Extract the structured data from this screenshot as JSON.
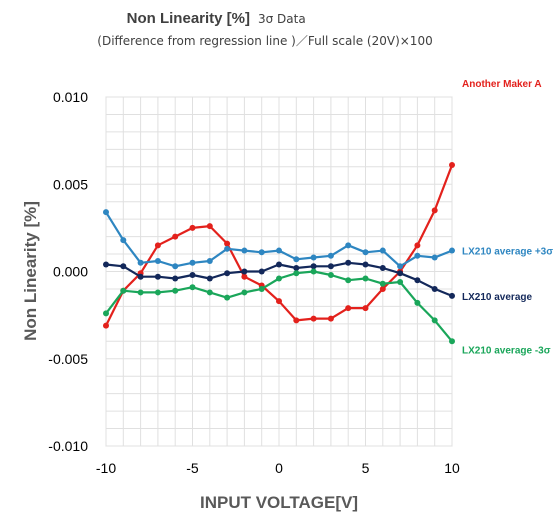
{
  "chart_data": {
    "type": "line",
    "title": "Non Linearity [%]",
    "title_suffix": "3σ Data",
    "subtitle": "(Difference from regression line )／Full scale (20V)×100",
    "xlabel": "INPUT VOLTAGE[V]",
    "ylabel": "Non Linearity [%]",
    "xlim": [
      -10,
      10
    ],
    "ylim": [
      -0.01,
      0.01
    ],
    "x_ticks": [
      -10,
      -5,
      0,
      5,
      10
    ],
    "x_tick_labels": [
      "-10",
      "-5",
      "0",
      "5",
      "10"
    ],
    "y_ticks": [
      -0.01,
      -0.005,
      0,
      0.005,
      0.01
    ],
    "y_tick_labels": [
      "-0.010",
      "-0.005",
      "0.000",
      "0.005",
      "0.010"
    ],
    "grid": true,
    "legend": "inline labels at right end of each line",
    "x": [
      -10,
      -9,
      -8,
      -7,
      -6,
      -5,
      -4,
      -3,
      -2,
      -1,
      0,
      1,
      2,
      3,
      4,
      5,
      6,
      7,
      8,
      9,
      10
    ],
    "series": [
      {
        "name": "Another Maker A",
        "color": "#e3211c",
        "values": [
          -0.0031,
          -0.0011,
          -0.0001,
          0.0015,
          0.002,
          0.0025,
          0.0026,
          0.0016,
          -0.0003,
          -0.0008,
          -0.0017,
          -0.0028,
          -0.0027,
          -0.0027,
          -0.0021,
          -0.0021,
          -0.001,
          0.0,
          0.0015,
          0.0035,
          0.0061
        ]
      },
      {
        "name": "LX210 average +3σ",
        "color": "#2e86c1",
        "values": [
          0.0034,
          0.0018,
          0.0005,
          0.0006,
          0.0003,
          0.0005,
          0.0006,
          0.0013,
          0.0012,
          0.0011,
          0.0012,
          0.0007,
          0.0008,
          0.0009,
          0.0015,
          0.0011,
          0.0012,
          0.0003,
          0.0009,
          0.0008,
          0.0012
        ]
      },
      {
        "name": "LX210 average",
        "color": "#13285a",
        "values": [
          0.0004,
          0.0003,
          -0.0003,
          -0.0003,
          -0.0004,
          -0.0002,
          -0.0004,
          -0.0001,
          0.0,
          0.0,
          0.0004,
          0.0002,
          0.0003,
          0.0003,
          0.0005,
          0.0004,
          0.0002,
          -0.0001,
          -0.0005,
          -0.001,
          -0.0014
        ]
      },
      {
        "name": "LX210 average -3σ",
        "color": "#1aa65a",
        "values": [
          -0.0024,
          -0.0011,
          -0.0012,
          -0.0012,
          -0.0011,
          -0.0009,
          -0.0012,
          -0.0015,
          -0.0012,
          -0.001,
          -0.0004,
          -0.0001,
          0.0,
          -0.0002,
          -0.0005,
          -0.0004,
          -0.0007,
          -0.0006,
          -0.0018,
          -0.0028,
          -0.004
        ]
      }
    ]
  }
}
